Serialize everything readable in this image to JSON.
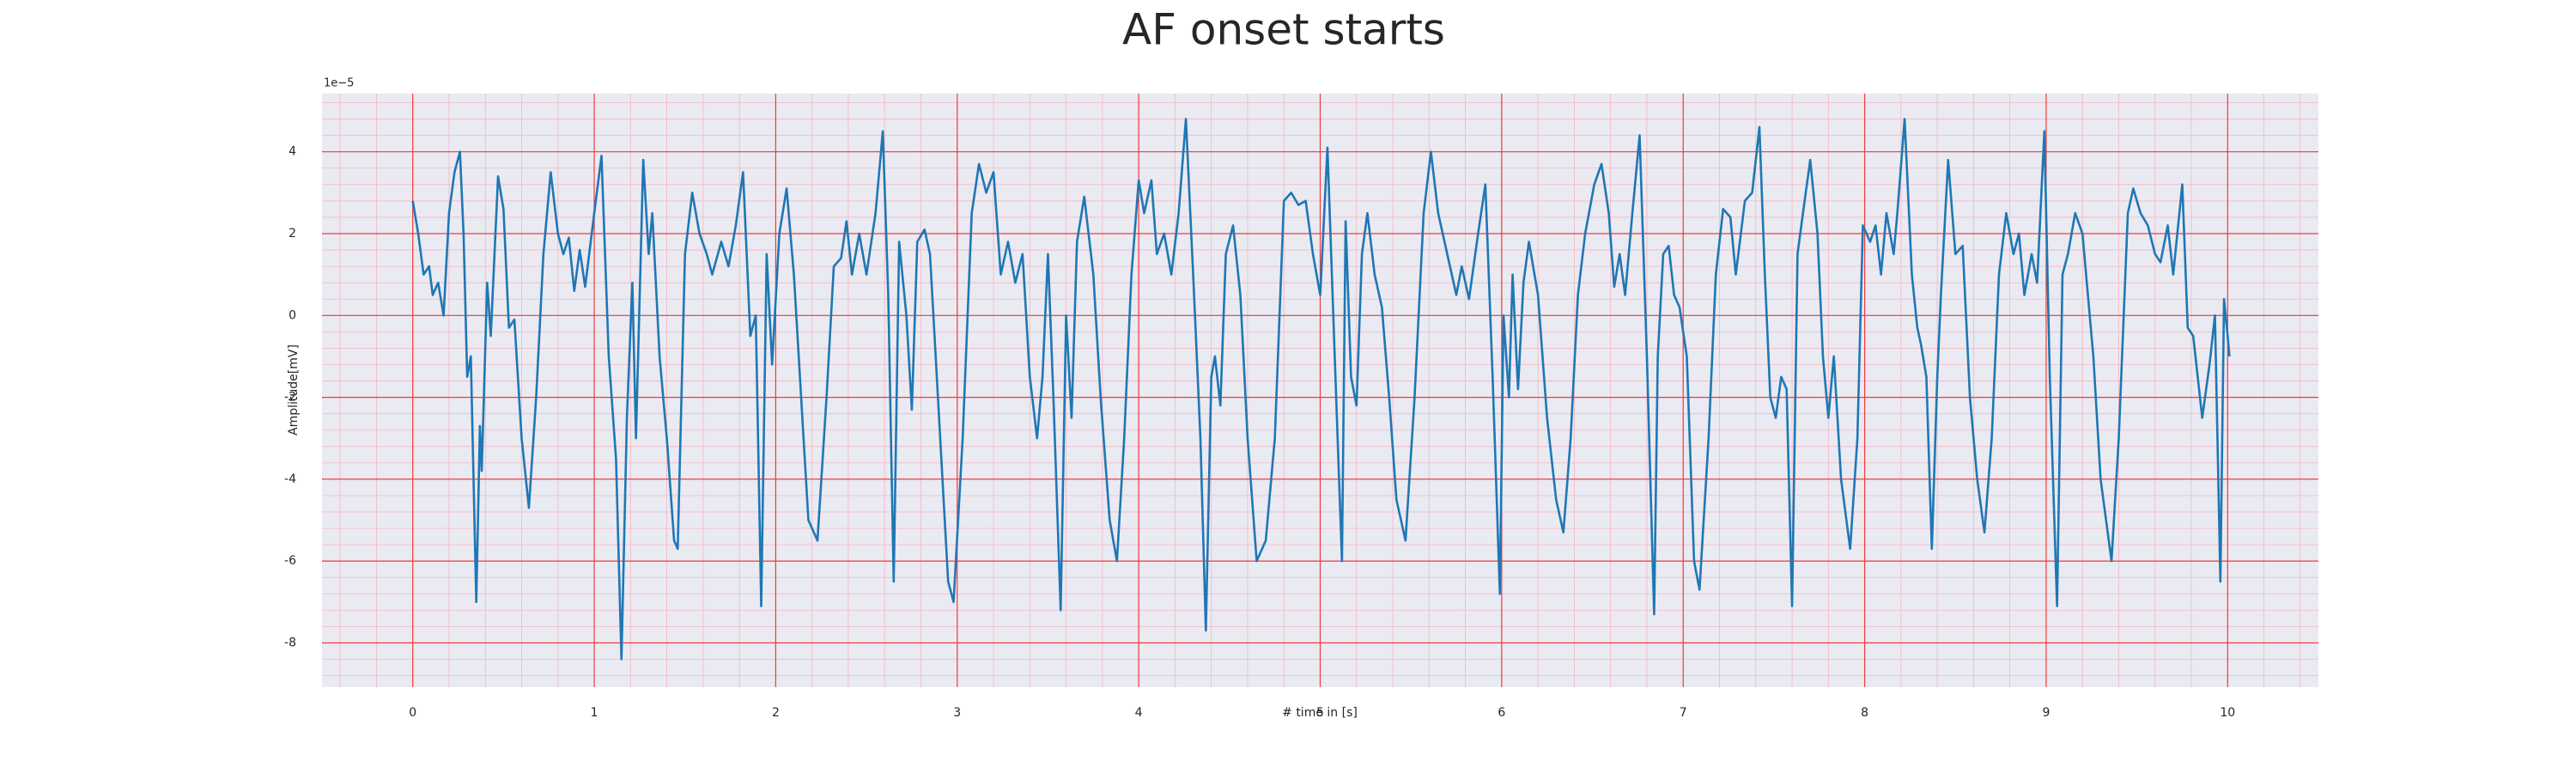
{
  "chart_data": {
    "type": "line",
    "title": "AF onset starts",
    "xlabel": "# time in [s]",
    "ylabel": "Amplitude[mV]",
    "y_offset_label": "1e−5",
    "color": "#1f77b4",
    "grid": true,
    "minor_grid": true,
    "xlim": [
      -0.5,
      10.5
    ],
    "ylim": [
      -9.08,
      5.42
    ],
    "xticks": [
      0,
      1,
      2,
      3,
      4,
      5,
      6,
      7,
      8,
      9,
      10
    ],
    "yticks": [
      -8,
      -6,
      -4,
      -2,
      0,
      2,
      4
    ],
    "x": [
      0.0,
      0.03,
      0.06,
      0.09,
      0.11,
      0.14,
      0.17,
      0.2,
      0.23,
      0.26,
      0.28,
      0.3,
      0.32,
      0.35,
      0.37,
      0.38,
      0.41,
      0.43,
      0.47,
      0.5,
      0.53,
      0.56,
      0.6,
      0.64,
      0.68,
      0.72,
      0.76,
      0.8,
      0.83,
      0.86,
      0.89,
      0.92,
      0.95,
      1.0,
      1.04,
      1.08,
      1.12,
      1.15,
      1.18,
      1.21,
      1.23,
      1.27,
      1.3,
      1.32,
      1.36,
      1.4,
      1.44,
      1.46,
      1.5,
      1.54,
      1.58,
      1.62,
      1.65,
      1.7,
      1.74,
      1.78,
      1.82,
      1.86,
      1.89,
      1.92,
      1.95,
      1.98,
      2.02,
      2.06,
      2.1,
      2.14,
      2.18,
      2.23,
      2.28,
      2.32,
      2.36,
      2.39,
      2.42,
      2.46,
      2.5,
      2.55,
      2.59,
      2.62,
      2.65,
      2.68,
      2.72,
      2.75,
      2.78,
      2.82,
      2.85,
      2.9,
      2.95,
      2.98,
      3.03,
      3.08,
      3.12,
      3.16,
      3.2,
      3.24,
      3.28,
      3.32,
      3.36,
      3.4,
      3.44,
      3.47,
      3.5,
      3.53,
      3.57,
      3.6,
      3.63,
      3.66,
      3.7,
      3.75,
      3.79,
      3.84,
      3.88,
      3.92,
      3.96,
      4.0,
      4.03,
      4.07,
      4.1,
      4.14,
      4.18,
      4.22,
      4.26,
      4.3,
      4.34,
      4.37,
      4.4,
      4.42,
      4.45,
      4.48,
      4.52,
      4.56,
      4.6,
      4.65,
      4.7,
      4.75,
      4.8,
      4.84,
      4.88,
      4.92,
      4.96,
      5.0,
      5.04,
      5.08,
      5.12,
      5.14,
      5.17,
      5.2,
      5.23,
      5.26,
      5.3,
      5.34,
      5.38,
      5.42,
      5.47,
      5.52,
      5.57,
      5.61,
      5.65,
      5.7,
      5.75,
      5.78,
      5.82,
      5.87,
      5.91,
      5.95,
      5.99,
      6.01,
      6.04,
      6.06,
      6.09,
      6.12,
      6.15,
      6.2,
      6.25,
      6.3,
      6.34,
      6.38,
      6.42,
      6.46,
      6.51,
      6.55,
      6.59,
      6.62,
      6.65,
      6.68,
      6.72,
      6.76,
      6.8,
      6.84,
      6.86,
      6.89,
      6.92,
      6.95,
      6.98,
      7.02,
      7.06,
      7.09,
      7.14,
      7.18,
      7.22,
      7.26,
      7.29,
      7.34,
      7.38,
      7.42,
      7.45,
      7.48,
      7.51,
      7.54,
      7.57,
      7.6,
      7.63,
      7.66,
      7.7,
      7.74,
      7.77,
      7.8,
      7.83,
      7.87,
      7.92,
      7.96,
      7.99,
      8.03,
      8.06,
      8.09,
      8.12,
      8.16,
      8.18,
      8.22,
      8.26,
      8.29,
      8.31,
      8.34,
      8.37,
      8.4,
      8.42,
      8.46,
      8.5,
      8.54,
      8.58,
      8.62,
      8.66,
      8.7,
      8.74,
      8.78,
      8.82,
      8.85,
      8.88,
      8.92,
      8.95,
      8.99,
      9.02,
      9.06,
      9.09,
      9.12,
      9.16,
      9.2,
      9.23,
      9.26,
      9.3,
      9.36,
      9.4,
      9.45,
      9.48,
      9.52,
      9.56,
      9.6,
      9.63,
      9.67,
      9.7,
      9.75,
      9.78,
      9.81,
      9.86,
      9.9,
      9.93,
      9.96,
      9.98,
      10.0,
      10.01
    ],
    "values": [
      2.8,
      2.0,
      1.0,
      1.2,
      0.5,
      0.8,
      0.0,
      2.5,
      3.5,
      4.0,
      2.0,
      -1.5,
      -1.0,
      -7.0,
      -2.7,
      -3.8,
      0.8,
      -0.5,
      3.4,
      2.6,
      -0.3,
      -0.1,
      -3.0,
      -4.7,
      -2.0,
      1.5,
      3.5,
      2.0,
      1.5,
      1.9,
      0.6,
      1.6,
      0.7,
      2.5,
      3.9,
      -1.0,
      -3.5,
      -8.4,
      -2.5,
      0.8,
      -3.0,
      3.8,
      1.5,
      2.5,
      -1.0,
      -3.0,
      -5.5,
      -5.7,
      1.5,
      3.0,
      2.0,
      1.5,
      1.0,
      1.8,
      1.2,
      2.2,
      3.5,
      -0.5,
      0.0,
      -7.1,
      1.5,
      -1.2,
      2.0,
      3.1,
      1.0,
      -2.0,
      -5.0,
      -5.5,
      -2.0,
      1.2,
      1.4,
      2.3,
      1.0,
      2.0,
      1.0,
      2.5,
      4.5,
      0.5,
      -6.5,
      1.8,
      0.0,
      -2.3,
      1.8,
      2.1,
      1.5,
      -2.5,
      -6.5,
      -7.0,
      -3.0,
      2.5,
      3.7,
      3.0,
      3.5,
      1.0,
      1.8,
      0.8,
      1.5,
      -1.5,
      -3.0,
      -1.5,
      1.5,
      -2.0,
      -7.2,
      0.0,
      -2.5,
      1.8,
      2.9,
      1.0,
      -2.0,
      -5.0,
      -6.0,
      -3.0,
      1.0,
      3.3,
      2.5,
      3.3,
      1.5,
      2.0,
      1.0,
      2.5,
      4.8,
      1.0,
      -3.0,
      -7.7,
      -1.5,
      -1.0,
      -2.2,
      1.5,
      2.2,
      0.5,
      -3.0,
      -6.0,
      -5.5,
      -3.0,
      2.8,
      3.0,
      2.7,
      2.8,
      1.5,
      0.5,
      4.1,
      -1.0,
      -6.0,
      2.3,
      -1.5,
      -2.2,
      1.5,
      2.5,
      1.0,
      0.2,
      -2.0,
      -4.5,
      -5.5,
      -2.0,
      2.5,
      4.0,
      2.5,
      1.5,
      0.5,
      1.2,
      0.4,
      2.0,
      3.2,
      -1.5,
      -6.8,
      0.0,
      -2.0,
      1.0,
      -1.8,
      0.8,
      1.8,
      0.5,
      -2.5,
      -4.5,
      -5.3,
      -3.0,
      0.5,
      2.0,
      3.2,
      3.7,
      2.5,
      0.7,
      1.5,
      0.5,
      2.5,
      4.4,
      -1.0,
      -7.3,
      -1.0,
      1.5,
      1.7,
      0.5,
      0.2,
      -1.0,
      -6.0,
      -6.7,
      -3.0,
      1.0,
      2.6,
      2.4,
      1.0,
      2.8,
      3.0,
      4.6,
      1.0,
      -2.0,
      -2.5,
      -1.5,
      -1.8,
      -7.1,
      1.5,
      2.5,
      3.8,
      2.0,
      -1.0,
      -2.5,
      -1.0,
      -4.0,
      -5.7,
      -3.0,
      2.2,
      1.8,
      2.2,
      1.0,
      2.5,
      1.5,
      2.5,
      4.8,
      1.0,
      -0.3,
      -0.7,
      -1.5,
      -5.7,
      -1.5,
      0.5,
      3.8,
      1.5,
      1.7,
      -2.0,
      -4.0,
      -5.3,
      -3.0,
      1.0,
      2.5,
      1.5,
      2.0,
      0.5,
      1.5,
      0.8,
      4.5,
      -1.5,
      -7.1,
      1.0,
      1.5,
      2.5,
      2.0,
      0.5,
      -1.0,
      -4.0,
      -6.0,
      -3.0,
      2.5,
      3.1,
      2.5,
      2.2,
      1.5,
      1.3,
      2.2,
      1.0,
      3.2,
      -0.3,
      -0.5,
      -2.5,
      -1.2,
      0.0,
      -6.5,
      0.4,
      -0.5,
      -1.0
    ]
  }
}
